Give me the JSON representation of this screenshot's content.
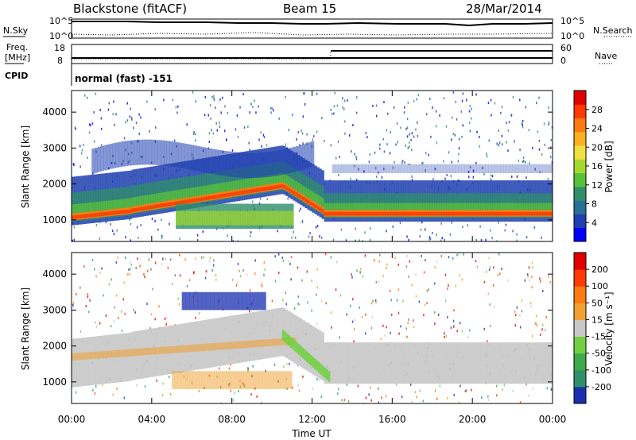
{
  "header": {
    "title": "Blackstone (fitACF)",
    "beam": "Beam 15",
    "date": "28/Mar/2014"
  },
  "top_panels": {
    "nsky_label": "N.Sky",
    "nsearch_label": "N.Search",
    "noise_ticks_left": [
      "10^5",
      "10^0"
    ],
    "noise_ticks_right": [
      "10^5",
      "10^0"
    ],
    "freq_label_1": "Freq.",
    "freq_label_2": "[MHz]",
    "freq_ticks": [
      "18",
      "8"
    ],
    "nave_label": "Nave",
    "nave_ticks": [
      "60",
      "0"
    ],
    "cpid_label": "CPID",
    "cpid_value": "normal (fast) -151"
  },
  "chart_data": [
    {
      "type": "heatmap",
      "name": "power",
      "ylabel": "Slant Range [km]",
      "ylim": [
        400,
        4600
      ],
      "yticks": [
        "4000",
        "3000",
        "2000",
        "1000"
      ],
      "xticks": [
        "00:00",
        "04:00",
        "08:00",
        "12:00",
        "16:00",
        "20:00",
        "00:00"
      ],
      "colorbar": {
        "label": "Power [dB]",
        "ticks": [
          "28",
          "24",
          "20",
          "16",
          "12",
          "8",
          "4"
        ],
        "colors": [
          "#0000ff",
          "#1f3fb0",
          "#2a6f96",
          "#2f8f6a",
          "#57c13a",
          "#a3d92c",
          "#f0e040",
          "#ffb020",
          "#ff7a10",
          "#ff3a00",
          "#e00000"
        ]
      }
    },
    {
      "type": "heatmap",
      "name": "velocity",
      "ylabel": "Slant Range [km]",
      "ylim": [
        400,
        4600
      ],
      "yticks": [
        "4000",
        "3000",
        "2000",
        "1000"
      ],
      "xticks": [
        "00:00",
        "04:00",
        "08:00",
        "12:00",
        "16:00",
        "20:00",
        "00:00"
      ],
      "xlabel": "Time UT",
      "colorbar": {
        "label": "Velocity [m s⁻¹]",
        "ticks": [
          "200",
          "100",
          "50",
          "15",
          "-15",
          "-50",
          "-100",
          "-200"
        ],
        "colors": [
          "#1a2fb0",
          "#2f8f6a",
          "#3fa84a",
          "#70d040",
          "#c8c8c8",
          "#f0a030",
          "#ff7a10",
          "#ff3a00",
          "#e00000"
        ]
      }
    }
  ]
}
